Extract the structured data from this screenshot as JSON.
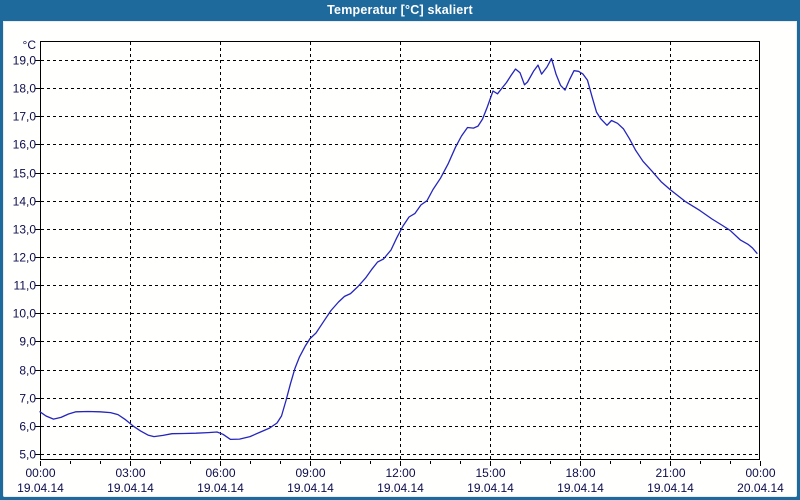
{
  "window": {
    "title": "Temperatur [°C] skaliert"
  },
  "colors": {
    "titlebar": "#1f6a9d",
    "window_border": "#1f6a9d",
    "background": "#fffffe",
    "grid": "#000000",
    "label": "#0d0d4d",
    "line": "#2525bd"
  },
  "chart_data": {
    "type": "line",
    "title": "Temperatur [°C] skaliert",
    "xlabel": "",
    "ylabel": "°C",
    "ylim": [
      4.8,
      19.7
    ],
    "xlim_hours": [
      0,
      24
    ],
    "grid": "dashed",
    "legend": "none",
    "y_ticks": [
      {
        "value": 19,
        "label": "19,0"
      },
      {
        "value": 18,
        "label": "18,0"
      },
      {
        "value": 17,
        "label": "17,0"
      },
      {
        "value": 16,
        "label": "16,0"
      },
      {
        "value": 15,
        "label": "15,0"
      },
      {
        "value": 14,
        "label": "14,0"
      },
      {
        "value": 13,
        "label": "13,0"
      },
      {
        "value": 12,
        "label": "12,0"
      },
      {
        "value": 11,
        "label": "11,0"
      },
      {
        "value": 10,
        "label": "10,0"
      },
      {
        "value": 9,
        "label": "9,0"
      },
      {
        "value": 8,
        "label": "8,0"
      },
      {
        "value": 7,
        "label": "7,0"
      },
      {
        "value": 6,
        "label": "6,0"
      },
      {
        "value": 5,
        "label": "5,0"
      }
    ],
    "x_ticks": [
      {
        "hour": 0,
        "time": "00:00",
        "date": "19.04.14"
      },
      {
        "hour": 3,
        "time": "03:00",
        "date": "19.04.14"
      },
      {
        "hour": 6,
        "time": "06:00",
        "date": "19.04.14"
      },
      {
        "hour": 9,
        "time": "09:00",
        "date": "19.04.14"
      },
      {
        "hour": 12,
        "time": "12:00",
        "date": "19.04.14"
      },
      {
        "hour": 15,
        "time": "15:00",
        "date": "19.04.14"
      },
      {
        "hour": 18,
        "time": "18:00",
        "date": "19.04.14"
      },
      {
        "hour": 21,
        "time": "21:00",
        "date": "19.04.14"
      },
      {
        "hour": 24,
        "time": "00:00",
        "date": "20.04.14"
      }
    ],
    "series": [
      {
        "name": "Temperatur",
        "color": "#2525bd",
        "points_hour_temp": [
          [
            0,
            6.5
          ],
          [
            0.2,
            6.35
          ],
          [
            0.45,
            6.24
          ],
          [
            0.7,
            6.3
          ],
          [
            0.95,
            6.42
          ],
          [
            1.2,
            6.5
          ],
          [
            1.6,
            6.51
          ],
          [
            2.0,
            6.5
          ],
          [
            2.35,
            6.47
          ],
          [
            2.6,
            6.4
          ],
          [
            2.85,
            6.22
          ],
          [
            3.1,
            6.0
          ],
          [
            3.35,
            5.82
          ],
          [
            3.6,
            5.67
          ],
          [
            3.8,
            5.62
          ],
          [
            4.1,
            5.66
          ],
          [
            4.4,
            5.72
          ],
          [
            4.8,
            5.73
          ],
          [
            5.2,
            5.74
          ],
          [
            5.6,
            5.76
          ],
          [
            5.9,
            5.78
          ],
          [
            6.1,
            5.7
          ],
          [
            6.35,
            5.52
          ],
          [
            6.65,
            5.53
          ],
          [
            7.0,
            5.62
          ],
          [
            7.35,
            5.78
          ],
          [
            7.65,
            5.92
          ],
          [
            7.9,
            6.1
          ],
          [
            8.05,
            6.35
          ],
          [
            8.2,
            6.9
          ],
          [
            8.35,
            7.5
          ],
          [
            8.5,
            8.05
          ],
          [
            8.65,
            8.45
          ],
          [
            8.85,
            8.85
          ],
          [
            9.0,
            9.1
          ],
          [
            9.2,
            9.3
          ],
          [
            9.45,
            9.7
          ],
          [
            9.7,
            10.1
          ],
          [
            9.95,
            10.4
          ],
          [
            10.15,
            10.6
          ],
          [
            10.35,
            10.7
          ],
          [
            10.6,
            10.95
          ],
          [
            10.85,
            11.25
          ],
          [
            11.05,
            11.55
          ],
          [
            11.25,
            11.82
          ],
          [
            11.45,
            11.93
          ],
          [
            11.7,
            12.25
          ],
          [
            11.9,
            12.7
          ],
          [
            12.1,
            13.1
          ],
          [
            12.3,
            13.42
          ],
          [
            12.5,
            13.55
          ],
          [
            12.7,
            13.85
          ],
          [
            12.9,
            14.0
          ],
          [
            13.1,
            14.4
          ],
          [
            13.35,
            14.8
          ],
          [
            13.6,
            15.3
          ],
          [
            13.85,
            15.9
          ],
          [
            14.05,
            16.3
          ],
          [
            14.25,
            16.6
          ],
          [
            14.45,
            16.58
          ],
          [
            14.6,
            16.65
          ],
          [
            14.75,
            16.9
          ],
          [
            14.9,
            17.3
          ],
          [
            15.0,
            17.6
          ],
          [
            15.1,
            17.9
          ],
          [
            15.25,
            17.8
          ],
          [
            15.4,
            18.0
          ],
          [
            15.55,
            18.2
          ],
          [
            15.7,
            18.45
          ],
          [
            15.85,
            18.68
          ],
          [
            16.0,
            18.55
          ],
          [
            16.15,
            18.12
          ],
          [
            16.25,
            18.22
          ],
          [
            16.45,
            18.6
          ],
          [
            16.6,
            18.82
          ],
          [
            16.72,
            18.5
          ],
          [
            16.9,
            18.75
          ],
          [
            17.05,
            19.05
          ],
          [
            17.2,
            18.5
          ],
          [
            17.35,
            18.1
          ],
          [
            17.5,
            17.93
          ],
          [
            17.65,
            18.3
          ],
          [
            17.8,
            18.62
          ],
          [
            17.95,
            18.6
          ],
          [
            18.1,
            18.5
          ],
          [
            18.25,
            18.28
          ],
          [
            18.4,
            17.7
          ],
          [
            18.55,
            17.15
          ],
          [
            18.7,
            16.9
          ],
          [
            18.9,
            16.68
          ],
          [
            19.05,
            16.85
          ],
          [
            19.25,
            16.75
          ],
          [
            19.45,
            16.55
          ],
          [
            19.65,
            16.2
          ],
          [
            19.85,
            15.8
          ],
          [
            20.1,
            15.4
          ],
          [
            20.4,
            15.05
          ],
          [
            20.7,
            14.68
          ],
          [
            21.0,
            14.4
          ],
          [
            21.5,
            13.98
          ],
          [
            22.0,
            13.65
          ],
          [
            22.4,
            13.35
          ],
          [
            22.75,
            13.12
          ],
          [
            23.0,
            12.95
          ],
          [
            23.35,
            12.6
          ],
          [
            23.6,
            12.45
          ],
          [
            23.75,
            12.32
          ],
          [
            23.9,
            12.13
          ]
        ]
      }
    ]
  }
}
